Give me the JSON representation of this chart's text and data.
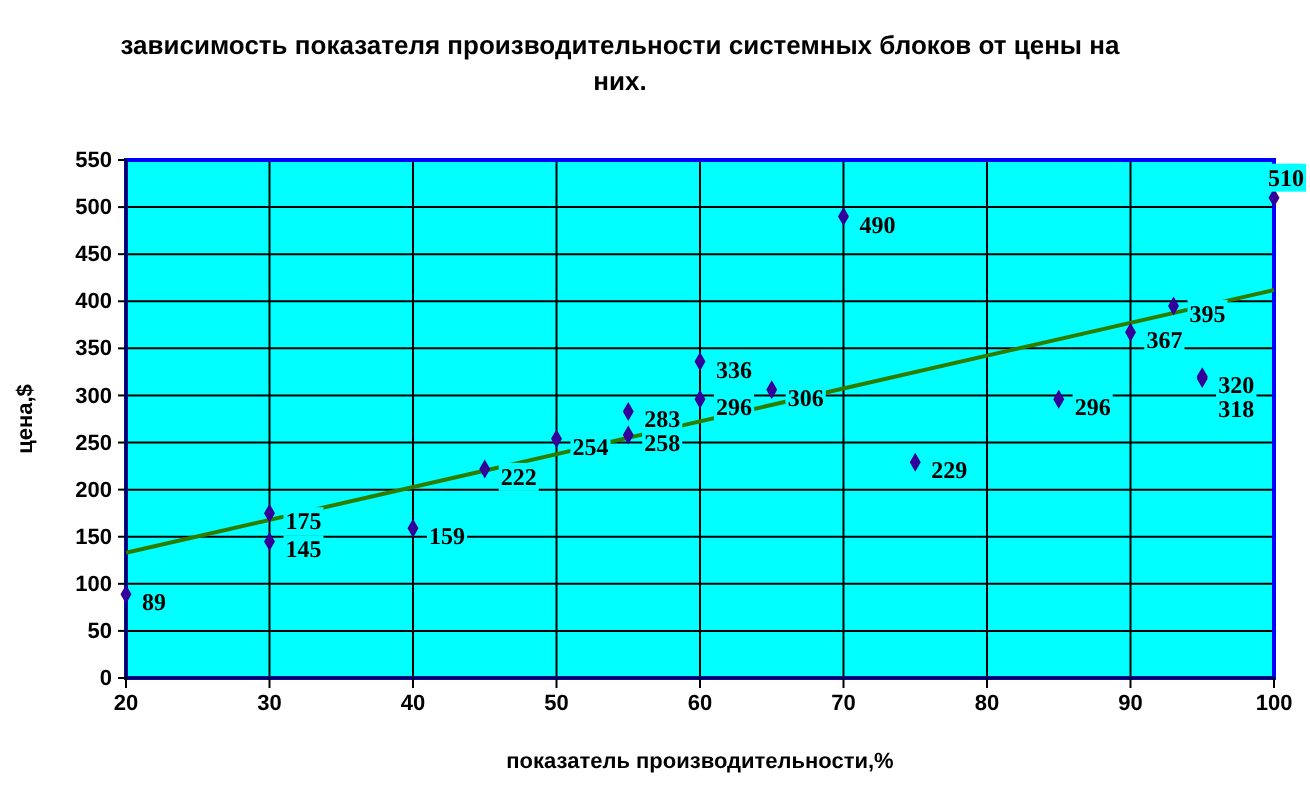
{
  "chart_data": {
    "type": "scatter",
    "title": "зависимость показателя производительности системных блоков от цены на них.",
    "xlabel": "показатель производительности,%",
    "ylabel": "цена,$",
    "xlim": [
      20,
      100
    ],
    "xticks": [
      20,
      30,
      40,
      50,
      60,
      70,
      80,
      90,
      100
    ],
    "ylim": [
      0,
      550
    ],
    "yticks": [
      0,
      50,
      100,
      150,
      200,
      250,
      300,
      350,
      400,
      450,
      500,
      550
    ],
    "grid": true,
    "series": [
      {
        "marker": "diamond",
        "color": "#330099",
        "x": [
          20,
          30,
          30,
          40,
          45,
          50,
          55,
          55,
          60,
          60,
          65,
          70,
          75,
          85,
          90,
          93,
          95,
          95,
          100
        ],
        "values": [
          89,
          175,
          145,
          159,
          222,
          254,
          283,
          258,
          336,
          296,
          306,
          490,
          229,
          296,
          367,
          395,
          320,
          318,
          510
        ],
        "value_labels": [
          "89",
          "175",
          "145",
          "159",
          "222",
          "254",
          "283",
          "258",
          "336",
          "296",
          "306",
          "490",
          "229",
          "296",
          "367",
          "395",
          "320",
          "318",
          "510"
        ]
      },
      {
        "type": "line",
        "color": "#2e7d00",
        "x": [
          20,
          100
        ],
        "values": [
          133,
          412
        ]
      }
    ]
  }
}
